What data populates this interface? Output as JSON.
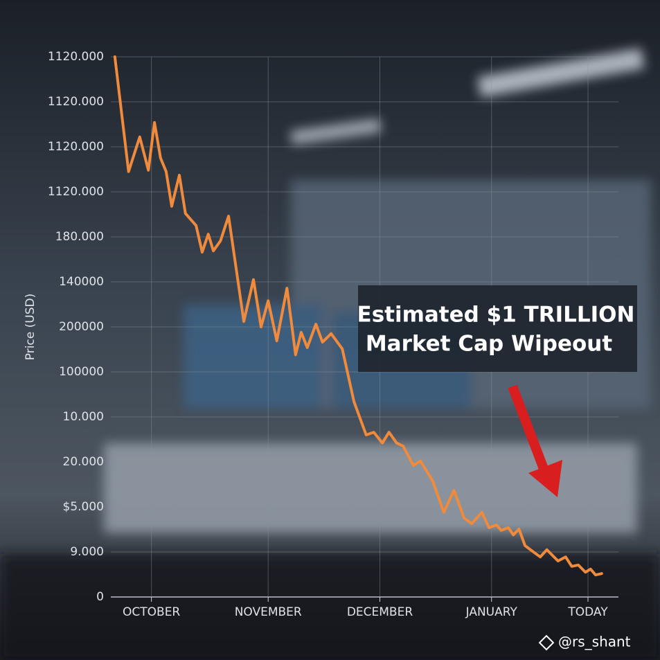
{
  "chart_data": {
    "type": "line",
    "y_label": "Price (USD)",
    "annotation": [
      "Estimated $1 TRILLION",
      "Market Cap Wipeout"
    ],
    "watermark": "@rs_shant",
    "color": "#f08a3c",
    "grid": true,
    "xlim": [
      0,
      100
    ],
    "xticks": [
      {
        "value": 8,
        "label": "OCTOBER"
      },
      {
        "value": 31,
        "label": "NOVEMBER"
      },
      {
        "value": 53,
        "label": "DECEMBER"
      },
      {
        "value": 75,
        "label": "JANUARY"
      },
      {
        "value": 94,
        "label": "TODAY"
      }
    ],
    "ylim": [
      0,
      12
    ],
    "yticks": [
      0,
      {
        "value": 1,
        "label": "9.000"
      },
      {
        "value": 2,
        "label": "$5.000"
      },
      {
        "value": 3,
        "label": "20.000"
      },
      {
        "value": 4,
        "label": "10.000"
      },
      {
        "value": 5,
        "label": "100000"
      },
      {
        "value": 6,
        "label": "200000"
      },
      {
        "value": 7,
        "label": "140000"
      },
      {
        "value": 8,
        "label": "180.000"
      },
      {
        "value": 9,
        "label": "1120.000"
      },
      {
        "value": 10,
        "label": "1120.000"
      },
      {
        "value": 11,
        "label": "1120.000"
      },
      {
        "value": 12,
        "label": "1120.000"
      }
    ],
    "x": [
      0.8,
      3.5,
      5.7,
      7.4,
      8.6,
      9.8,
      10.9,
      12.0,
      13.5,
      14.7,
      16.8,
      18.0,
      19.2,
      20.2,
      21.6,
      23.2,
      26.2,
      28.1,
      29.6,
      31.0,
      32.7,
      34.7,
      36.4,
      37.5,
      38.7,
      40.4,
      41.7,
      43.4,
      45.6,
      47.9,
      50.3,
      51.8,
      53.5,
      54.8,
      56.3,
      57.6,
      59.6,
      61.0,
      63.4,
      65.6,
      67.6,
      69.6,
      71.1,
      73.1,
      74.5,
      76.0,
      76.9,
      78.3,
      79.3,
      80.4,
      81.6,
      83.5,
      84.6,
      85.9,
      88.1,
      89.6,
      90.8,
      92.1,
      93.5,
      94.5,
      95.5,
      96.7
    ],
    "values": [
      12.0,
      9.45,
      10.22,
      9.48,
      10.54,
      9.75,
      9.45,
      8.68,
      9.37,
      8.52,
      8.25,
      7.66,
      8.06,
      7.69,
      7.91,
      8.46,
      6.12,
      7.05,
      6.0,
      6.58,
      5.69,
      6.86,
      5.38,
      5.88,
      5.54,
      6.06,
      5.66,
      5.85,
      5.51,
      4.34,
      3.6,
      3.66,
      3.42,
      3.66,
      3.42,
      3.35,
      2.92,
      3.02,
      2.58,
      1.88,
      2.37,
      1.75,
      1.63,
      1.88,
      1.54,
      1.6,
      1.48,
      1.54,
      1.38,
      1.51,
      1.14,
      0.98,
      0.89,
      1.05,
      0.8,
      0.89,
      0.68,
      0.71,
      0.55,
      0.62,
      0.49,
      0.52
    ]
  }
}
